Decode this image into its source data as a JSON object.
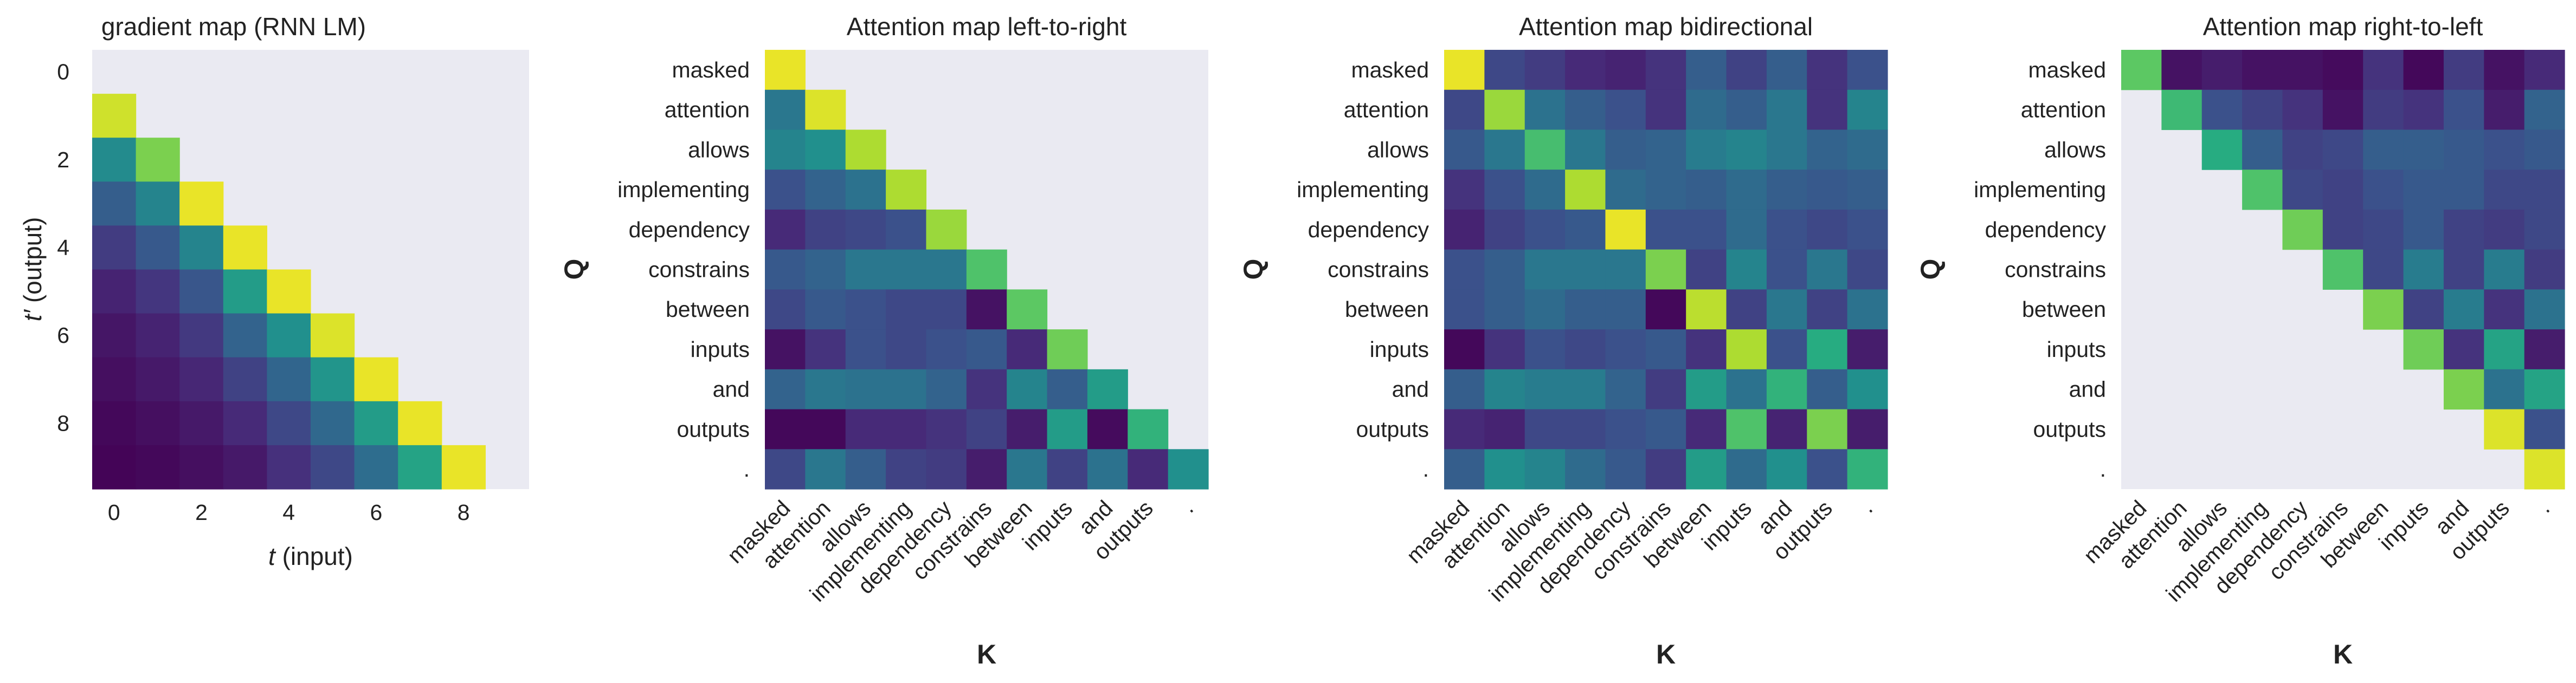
{
  "figure": {
    "background": "#ffffff",
    "plot_background": "#eaeaf2",
    "colormap": "viridis"
  },
  "chart_data": [
    {
      "type": "heatmap",
      "title": "gradient map (RNN LM)",
      "xlabel": "t (input)",
      "ylabel": "t′ (output)",
      "x_ticks": [
        "0",
        "2",
        "4",
        "6",
        "8"
      ],
      "y_ticks": [
        "0",
        "2",
        "4",
        "6",
        "8"
      ],
      "x_tick_positions": [
        0,
        2,
        4,
        6,
        8
      ],
      "y_tick_positions": [
        0,
        2,
        4,
        6,
        8
      ],
      "rows": 10,
      "cols": 10,
      "mask": "strict-lower",
      "values": [
        [
          null,
          null,
          null,
          null,
          null,
          null,
          null,
          null,
          null,
          null
        ],
        [
          0.93,
          null,
          null,
          null,
          null,
          null,
          null,
          null,
          null,
          null
        ],
        [
          0.48,
          0.8,
          null,
          null,
          null,
          null,
          null,
          null,
          null,
          null
        ],
        [
          0.3,
          0.45,
          0.97,
          null,
          null,
          null,
          null,
          null,
          null,
          null
        ],
        [
          0.18,
          0.28,
          0.45,
          0.97,
          null,
          null,
          null,
          null,
          null,
          null
        ],
        [
          0.1,
          0.16,
          0.27,
          0.55,
          0.97,
          null,
          null,
          null,
          null,
          null
        ],
        [
          0.06,
          0.1,
          0.17,
          0.32,
          0.5,
          0.95,
          null,
          null,
          null,
          null
        ],
        [
          0.04,
          0.07,
          0.11,
          0.2,
          0.33,
          0.52,
          0.97,
          null,
          null,
          null
        ],
        [
          0.02,
          0.04,
          0.07,
          0.12,
          0.22,
          0.34,
          0.55,
          0.97,
          null,
          null
        ],
        [
          0.01,
          0.02,
          0.04,
          0.07,
          0.14,
          0.22,
          0.36,
          0.58,
          0.97,
          null
        ]
      ]
    },
    {
      "type": "heatmap",
      "title": "Attention map left-to-right",
      "xlabel": "K",
      "ylabel": "Q",
      "x_ticks": [
        "masked",
        "attention",
        "allows",
        "implementing",
        "dependency",
        "constrains",
        "between",
        "inputs",
        "and",
        "outputs",
        "."
      ],
      "y_ticks": [
        "masked",
        "attention",
        "allows",
        "implementing",
        "dependency",
        "constrains",
        "between",
        "inputs",
        "and",
        "outputs",
        "."
      ],
      "rows": 11,
      "cols": 11,
      "mask": "lower",
      "values": [
        [
          0.97,
          null,
          null,
          null,
          null,
          null,
          null,
          null,
          null,
          null,
          null
        ],
        [
          0.4,
          0.95,
          null,
          null,
          null,
          null,
          null,
          null,
          null,
          null,
          null
        ],
        [
          0.45,
          0.5,
          0.88,
          null,
          null,
          null,
          null,
          null,
          null,
          null,
          null
        ],
        [
          0.25,
          0.32,
          0.38,
          0.88,
          null,
          null,
          null,
          null,
          null,
          null,
          null
        ],
        [
          0.12,
          0.2,
          0.22,
          0.25,
          0.85,
          null,
          null,
          null,
          null,
          null,
          null
        ],
        [
          0.28,
          0.32,
          0.4,
          0.4,
          0.4,
          0.72,
          null,
          null,
          null,
          null,
          null
        ],
        [
          0.22,
          0.28,
          0.25,
          0.22,
          0.22,
          0.05,
          0.75,
          null,
          null,
          null,
          null
        ],
        [
          0.05,
          0.15,
          0.25,
          0.22,
          0.25,
          0.28,
          0.12,
          0.78,
          null,
          null,
          null
        ],
        [
          0.32,
          0.4,
          0.38,
          0.38,
          0.32,
          0.15,
          0.45,
          0.3,
          0.55,
          null,
          null
        ],
        [
          0.02,
          0.02,
          0.12,
          0.12,
          0.15,
          0.2,
          0.08,
          0.55,
          0.03,
          0.65,
          null
        ],
        [
          0.22,
          0.4,
          0.3,
          0.2,
          0.18,
          0.08,
          0.4,
          0.2,
          0.38,
          0.12,
          0.5
        ]
      ]
    },
    {
      "type": "heatmap",
      "title": "Attention map bidirectional",
      "xlabel": "K",
      "ylabel": "Q",
      "x_ticks": [
        "masked",
        "attention",
        "allows",
        "implementing",
        "dependency",
        "constrains",
        "between",
        "inputs",
        "and",
        "outputs",
        "."
      ],
      "y_ticks": [
        "masked",
        "attention",
        "allows",
        "implementing",
        "dependency",
        "constrains",
        "between",
        "inputs",
        "and",
        "outputs",
        "."
      ],
      "rows": 11,
      "cols": 11,
      "mask": "none",
      "values": [
        [
          0.97,
          0.22,
          0.18,
          0.12,
          0.1,
          0.15,
          0.3,
          0.2,
          0.3,
          0.15,
          0.25
        ],
        [
          0.22,
          0.85,
          0.38,
          0.3,
          0.25,
          0.15,
          0.35,
          0.3,
          0.4,
          0.15,
          0.45
        ],
        [
          0.28,
          0.4,
          0.7,
          0.4,
          0.3,
          0.32,
          0.42,
          0.45,
          0.4,
          0.32,
          0.35
        ],
        [
          0.15,
          0.25,
          0.35,
          0.88,
          0.35,
          0.32,
          0.3,
          0.35,
          0.3,
          0.28,
          0.3
        ],
        [
          0.1,
          0.2,
          0.25,
          0.28,
          0.97,
          0.25,
          0.25,
          0.35,
          0.25,
          0.22,
          0.25
        ],
        [
          0.25,
          0.3,
          0.4,
          0.4,
          0.4,
          0.8,
          0.2,
          0.45,
          0.25,
          0.4,
          0.22
        ],
        [
          0.25,
          0.3,
          0.35,
          0.3,
          0.3,
          0.02,
          0.9,
          0.2,
          0.4,
          0.2,
          0.38
        ],
        [
          0.02,
          0.15,
          0.25,
          0.22,
          0.25,
          0.28,
          0.15,
          0.88,
          0.25,
          0.62,
          0.08
        ],
        [
          0.3,
          0.45,
          0.42,
          0.42,
          0.32,
          0.18,
          0.55,
          0.38,
          0.65,
          0.3,
          0.5
        ],
        [
          0.12,
          0.1,
          0.22,
          0.22,
          0.25,
          0.28,
          0.12,
          0.72,
          0.1,
          0.8,
          0.08
        ],
        [
          0.3,
          0.5,
          0.45,
          0.35,
          0.28,
          0.18,
          0.55,
          0.35,
          0.5,
          0.25,
          0.65
        ]
      ]
    },
    {
      "type": "heatmap",
      "title": "Attention map right-to-left",
      "xlabel": "K",
      "ylabel": "Q",
      "x_ticks": [
        "masked",
        "attention",
        "allows",
        "implementing",
        "dependency",
        "constrains",
        "between",
        "inputs",
        "and",
        "outputs",
        "."
      ],
      "y_ticks": [
        "masked",
        "attention",
        "allows",
        "implementing",
        "dependency",
        "constrains",
        "between",
        "inputs",
        "and",
        "outputs",
        "."
      ],
      "rows": 11,
      "cols": 11,
      "mask": "upper",
      "values": [
        [
          0.75,
          0.05,
          0.08,
          0.05,
          0.05,
          0.03,
          0.15,
          0.02,
          0.18,
          0.05,
          0.12
        ],
        [
          null,
          0.68,
          0.25,
          0.2,
          0.15,
          0.05,
          0.18,
          0.15,
          0.25,
          0.08,
          0.32
        ],
        [
          null,
          null,
          0.62,
          0.3,
          0.2,
          0.22,
          0.3,
          0.3,
          0.28,
          0.25,
          0.28
        ],
        [
          null,
          null,
          null,
          0.72,
          0.22,
          0.2,
          0.25,
          0.28,
          0.28,
          0.22,
          0.22
        ],
        [
          null,
          null,
          null,
          null,
          0.78,
          0.2,
          0.22,
          0.28,
          0.2,
          0.18,
          0.22
        ],
        [
          null,
          null,
          null,
          null,
          null,
          0.72,
          0.22,
          0.42,
          0.2,
          0.42,
          0.18
        ],
        [
          null,
          null,
          null,
          null,
          null,
          null,
          0.8,
          0.2,
          0.42,
          0.15,
          0.38
        ],
        [
          null,
          null,
          null,
          null,
          null,
          null,
          null,
          0.78,
          0.15,
          0.58,
          0.08
        ],
        [
          null,
          null,
          null,
          null,
          null,
          null,
          null,
          null,
          0.8,
          0.38,
          0.58
        ],
        [
          null,
          null,
          null,
          null,
          null,
          null,
          null,
          null,
          null,
          0.95,
          0.25
        ],
        [
          null,
          null,
          null,
          null,
          null,
          null,
          null,
          null,
          null,
          null,
          0.95
        ]
      ]
    }
  ]
}
